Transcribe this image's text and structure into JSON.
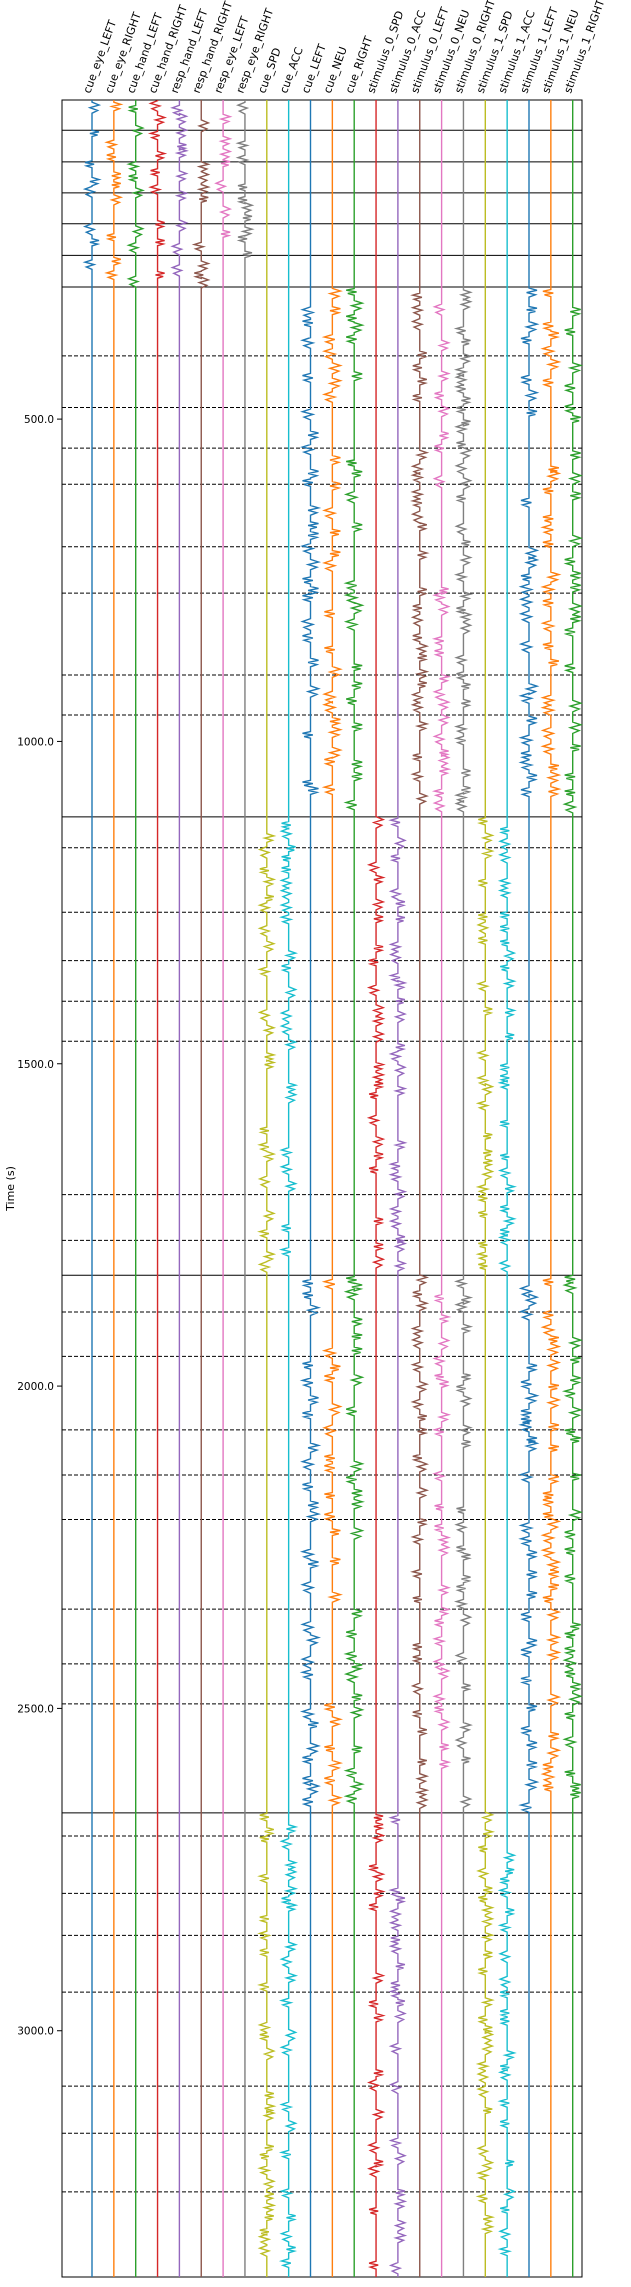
{
  "chart_data": {
    "type": "line",
    "title": "",
    "xlabel": "",
    "ylabel": "Time (s)",
    "yticks": [
      500.0,
      1000.0,
      1500.0,
      2000.0,
      2500.0,
      3000.0
    ],
    "ylim": [
      3382,
      5
    ],
    "channels": [
      {
        "name": "cue_eye_LEFT",
        "color": "#1f77b4"
      },
      {
        "name": "cue_eye_RIGHT",
        "color": "#ff7f0e"
      },
      {
        "name": "cue_hand_LEFT",
        "color": "#2ca02c"
      },
      {
        "name": "cue_hand_RIGHT",
        "color": "#d62728"
      },
      {
        "name": "resp_hand_LEFT",
        "color": "#9467bd"
      },
      {
        "name": "resp_hand_RIGHT",
        "color": "#8c564b"
      },
      {
        "name": "resp_eye_LEFT",
        "color": "#e377c2"
      },
      {
        "name": "resp_eye_RIGHT",
        "color": "#7f7f7f"
      },
      {
        "name": "cue_SPD",
        "color": "#bcbd22"
      },
      {
        "name": "cue_ACC",
        "color": "#17becf"
      },
      {
        "name": "cue_LEFT",
        "color": "#1f77b4"
      },
      {
        "name": "cue_NEU",
        "color": "#ff7f0e"
      },
      {
        "name": "cue_RIGHT",
        "color": "#2ca02c"
      },
      {
        "name": "stimulus_0_SPD",
        "color": "#d62728"
      },
      {
        "name": "stimulus_0_ACC",
        "color": "#9467bd"
      },
      {
        "name": "stimulus_0_LEFT",
        "color": "#8c564b"
      },
      {
        "name": "stimulus_0_NEU",
        "color": "#e377c2"
      },
      {
        "name": "stimulus_0_RIGHT",
        "color": "#7f7f7f"
      },
      {
        "name": "stimulus_1_SPD",
        "color": "#bcbd22"
      },
      {
        "name": "stimulus_1_ACC",
        "color": "#17becf"
      },
      {
        "name": "stimulus_1_LEFT",
        "color": "#1f77b4"
      },
      {
        "name": "stimulus_1_NEU",
        "color": "#ff7f0e"
      },
      {
        "name": "stimulus_1_RIGHT",
        "color": "#2ca02c"
      }
    ],
    "run_boundaries": [
      5,
      52,
      101,
      149,
      197,
      246,
      295,
      1117,
      1828,
      2662,
      3382
    ],
    "block_boundaries": [
      402,
      482,
      545,
      601,
      698,
      770,
      897,
      959,
      1165,
      1265,
      1340,
      1403,
      1465,
      1703,
      1774,
      1885,
      1954,
      2068,
      2138,
      2207,
      2346,
      2431,
      2493,
      2698,
      2787,
      2852,
      2940,
      3086,
      3159,
      3250
    ],
    "grid": false,
    "legend": "none"
  }
}
